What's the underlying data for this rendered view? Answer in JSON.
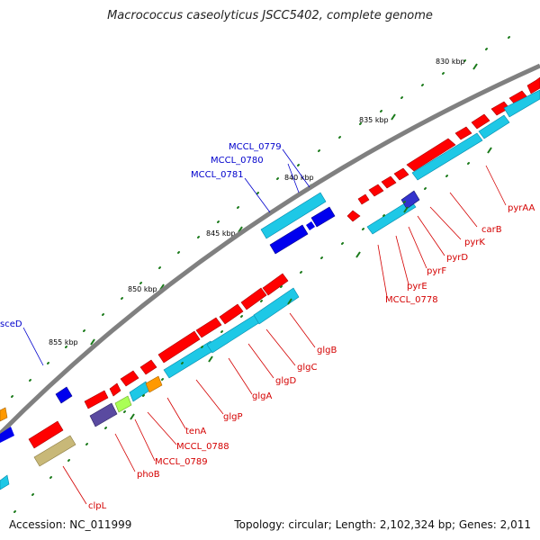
{
  "title": "Macrococcus caseolyticus JSCC5402, complete genome",
  "accession": "Accession: NC_011999",
  "topology": "Topology: circular; Length: 2,102,324 bp; Genes: 2,011",
  "ticks": {
    "t830": "830 kbp",
    "t835": "835 kbp",
    "t840": "840 kbp",
    "t845": "845 kbp",
    "t850": "850 kbp",
    "t855": "855 kbp"
  },
  "genes": {
    "pyrAA": "pyrAA",
    "carB": "carB",
    "pyrK": "pyrK",
    "pyrD": "pyrD",
    "pyrF": "pyrF",
    "pyrE": "pyrE",
    "mccl0778": "MCCL_0778",
    "mccl0779": "MCCL_0779",
    "mccl0780": "MCCL_0780",
    "mccl0781": "MCCL_0781",
    "sceD": "sceD",
    "glgB": "glgB",
    "glgC": "glgC",
    "glgD": "glgD",
    "glgA": "glgA",
    "glgP": "glgP",
    "tenA": "tenA",
    "mccl0788": "MCCL_0788",
    "mccl0789": "MCCL_0789",
    "phoB": "phoB",
    "clpL": "clpL"
  },
  "colors": {
    "backbone": "#888888",
    "forward_gene": "#ff0000",
    "reverse_gene": "#1ec8e6",
    "blue_gene": "#0000ee",
    "tick": "#1a7a1a",
    "label_red": "#d40000",
    "label_blue": "#0000cc"
  }
}
